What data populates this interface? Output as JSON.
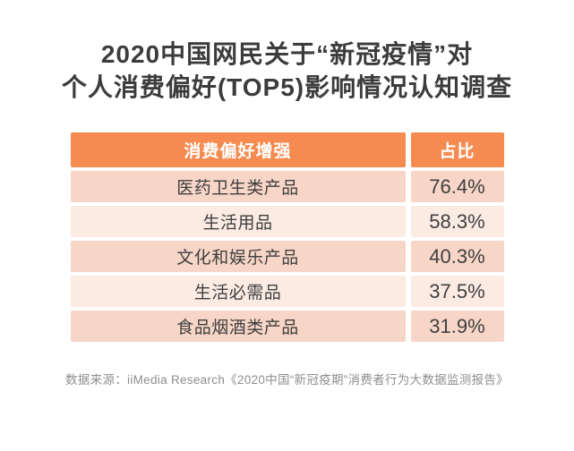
{
  "title": {
    "line1": "2020中国网民关于“新冠疫情”对",
    "line2": "个人消费偏好(TOP5)影响情况认知调查"
  },
  "table": {
    "headers": [
      "消费偏好增强",
      "占比"
    ],
    "rows": [
      {
        "label": "医药卫生类产品",
        "value": "76.4%"
      },
      {
        "label": "生活用品",
        "value": "58.3%"
      },
      {
        "label": "文化和娱乐产品",
        "value": "40.3%"
      },
      {
        "label": "生活必需品",
        "value": "37.5%"
      },
      {
        "label": "食品烟酒类产品",
        "value": "31.9%"
      }
    ]
  },
  "footer": {
    "source_note": "数据来源：iiMedia Research《2020中国“新冠疫期”消费者行为大数据监测报告》"
  },
  "colors": {
    "header_bg": "#f58b50",
    "row_odd_bg": "#f8d6c7",
    "row_even_bg": "#fbebe3",
    "header_text": "#ffffff",
    "title_text": "#3c3c3c",
    "cell_text": "#3f3f3f",
    "footer_text": "#8e8e8e"
  },
  "chart_data": {
    "type": "table",
    "title": "2020中国网民关于“新冠疫情”对个人消费偏好(TOP5)影响情况认知调查",
    "columns": [
      "消费偏好增强",
      "占比"
    ],
    "categories": [
      "医药卫生类产品",
      "生活用品",
      "文化和娱乐产品",
      "生活必需品",
      "食品烟酒类产品"
    ],
    "values": [
      76.4,
      58.3,
      40.3,
      37.5,
      31.9
    ],
    "unit": "%",
    "source": "数据来源：iiMedia Research《2020中国“新冠疫期”消费者行为大数据监测报告》"
  }
}
